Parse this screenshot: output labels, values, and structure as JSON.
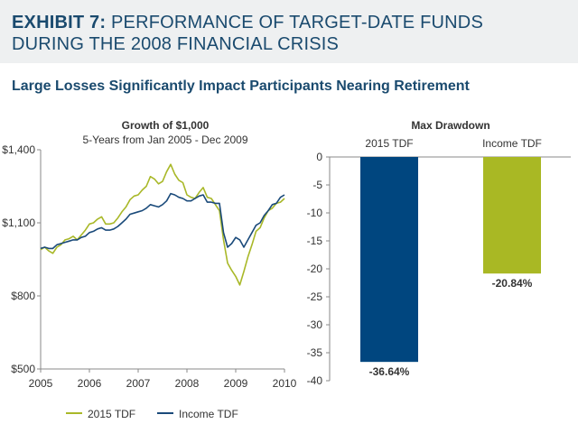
{
  "header": {
    "exhibit_label": "EXHIBIT 7:",
    "title": "PERFORMANCE OF TARGET-DATE FUNDS DURING THE 2008 FINANCIAL CRISIS"
  },
  "subtitle": "Large Losses Significantly Impact Participants Nearing Retirement",
  "chart_data": [
    {
      "type": "line",
      "title": "Growth of $1,000",
      "subtitle": "5-Years from Jan 2005 - Dec 2009",
      "xlabel": "",
      "ylabel": "",
      "x_ticks": [
        "2005",
        "2006",
        "2007",
        "2008",
        "2009",
        "2010"
      ],
      "y_ticks": [
        "$500",
        "$800",
        "$1,100",
        "$1,400"
      ],
      "y_tick_values": [
        500,
        800,
        1100,
        1400
      ],
      "xlim": [
        2005,
        2010
      ],
      "ylim": [
        500,
        1400
      ],
      "legend_position": "bottom",
      "grid": false,
      "series": [
        {
          "name": "2015 TDF",
          "color": "#a9b828",
          "x": [
            2005.0,
            2005.083,
            2005.167,
            2005.25,
            2005.333,
            2005.417,
            2005.5,
            2005.583,
            2005.667,
            2005.75,
            2005.833,
            2005.917,
            2006.0,
            2006.083,
            2006.167,
            2006.25,
            2006.333,
            2006.417,
            2006.5,
            2006.583,
            2006.667,
            2006.75,
            2006.833,
            2006.917,
            2007.0,
            2007.083,
            2007.167,
            2007.25,
            2007.333,
            2007.417,
            2007.5,
            2007.583,
            2007.667,
            2007.75,
            2007.833,
            2007.917,
            2008.0,
            2008.083,
            2008.167,
            2008.25,
            2008.333,
            2008.417,
            2008.5,
            2008.583,
            2008.667,
            2008.75,
            2008.833,
            2008.917,
            2009.0,
            2009.083,
            2009.167,
            2009.25,
            2009.333,
            2009.417,
            2009.5,
            2009.583,
            2009.667,
            2009.75,
            2009.833,
            2009.917,
            2010.0
          ],
          "values": [
            990,
            1000,
            985,
            975,
            1000,
            1010,
            1030,
            1035,
            1045,
            1030,
            1050,
            1070,
            1095,
            1100,
            1115,
            1125,
            1095,
            1095,
            1100,
            1120,
            1145,
            1165,
            1195,
            1210,
            1215,
            1235,
            1250,
            1290,
            1280,
            1260,
            1270,
            1310,
            1340,
            1300,
            1275,
            1265,
            1215,
            1205,
            1200,
            1225,
            1245,
            1205,
            1200,
            1175,
            1150,
            1030,
            935,
            905,
            880,
            845,
            900,
            960,
            1010,
            1065,
            1080,
            1120,
            1150,
            1160,
            1180,
            1185,
            1200
          ]
        },
        {
          "name": "Income TDF",
          "color": "#1a4a7a",
          "x": [
            2005.0,
            2005.083,
            2005.167,
            2005.25,
            2005.333,
            2005.417,
            2005.5,
            2005.583,
            2005.667,
            2005.75,
            2005.833,
            2005.917,
            2006.0,
            2006.083,
            2006.167,
            2006.25,
            2006.333,
            2006.417,
            2006.5,
            2006.583,
            2006.667,
            2006.75,
            2006.833,
            2006.917,
            2007.0,
            2007.083,
            2007.167,
            2007.25,
            2007.333,
            2007.417,
            2007.5,
            2007.583,
            2007.667,
            2007.75,
            2007.833,
            2007.917,
            2008.0,
            2008.083,
            2008.167,
            2008.25,
            2008.333,
            2008.417,
            2008.5,
            2008.583,
            2008.667,
            2008.75,
            2008.833,
            2008.917,
            2009.0,
            2009.083,
            2009.167,
            2009.25,
            2009.333,
            2009.417,
            2009.5,
            2009.583,
            2009.667,
            2009.75,
            2009.833,
            2009.917,
            2010.0
          ],
          "values": [
            995,
            1000,
            995,
            995,
            1010,
            1015,
            1020,
            1025,
            1030,
            1030,
            1040,
            1045,
            1060,
            1065,
            1075,
            1080,
            1070,
            1070,
            1075,
            1085,
            1100,
            1115,
            1135,
            1140,
            1145,
            1150,
            1160,
            1175,
            1170,
            1165,
            1175,
            1190,
            1220,
            1215,
            1205,
            1200,
            1190,
            1190,
            1200,
            1210,
            1215,
            1185,
            1185,
            1180,
            1180,
            1060,
            1000,
            1015,
            1040,
            1030,
            1000,
            1030,
            1060,
            1090,
            1100,
            1130,
            1150,
            1175,
            1180,
            1205,
            1215
          ]
        }
      ]
    },
    {
      "type": "bar",
      "title": "Max Drawdown",
      "categories": [
        "2015 TDF",
        "Income TDF"
      ],
      "values": [
        -36.64,
        -20.84
      ],
      "value_labels": [
        "-36.64%",
        "-20.84%"
      ],
      "colors": [
        "#00467f",
        "#a9b824"
      ],
      "y_ticks": [
        "0",
        "-5",
        "-10",
        "-15",
        "-20",
        "-25",
        "-30",
        "-35",
        "-40"
      ],
      "y_tick_values": [
        0,
        -5,
        -10,
        -15,
        -20,
        -25,
        -30,
        -35,
        -40
      ],
      "ylim": [
        -40,
        0
      ],
      "xlabel": "",
      "ylabel": "",
      "grid": false
    }
  ]
}
